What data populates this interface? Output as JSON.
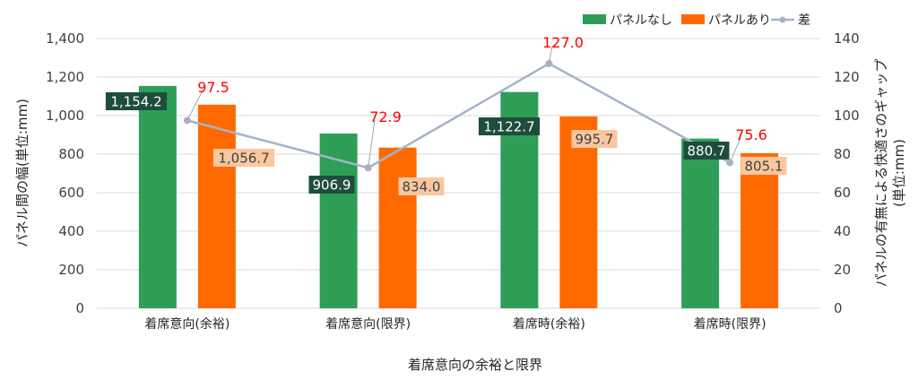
{
  "chart_data": {
    "type": "bar",
    "categories": [
      "着席意向(余裕)",
      "着席意向(限界)",
      "着席時(余裕)",
      "着席時(限界)"
    ],
    "series": [
      {
        "name": "パネルなし",
        "values": [
          1154.2,
          906.9,
          1122.7,
          880.7
        ],
        "color": "#2E9E57",
        "axis": "left",
        "labels": [
          "1,154.2",
          "906.9",
          "1,122.7",
          "880.7"
        ]
      },
      {
        "name": "パネルあり",
        "values": [
          1056.7,
          834.0,
          995.7,
          805.1
        ],
        "color": "#FF6A00",
        "axis": "left",
        "labels": [
          "1,056.7",
          "834.0",
          "995.7",
          "805.1"
        ]
      },
      {
        "name": "差",
        "type": "line",
        "values": [
          97.5,
          72.9,
          127.0,
          75.6
        ],
        "color": "#A5B3C8",
        "axis": "right",
        "labels": [
          "97.5",
          "72.9",
          "127.0",
          "75.6"
        ],
        "label_color": "#FF0000"
      }
    ],
    "xlabel": "着席意向の余裕と限界",
    "ylabel": "パネル間の幅(単位:mm)",
    "y2label_line1": "パネルの有無による快適さのギャップ",
    "y2label_line2": "(単位:mm)",
    "ylim": [
      0,
      1400
    ],
    "y2lim": [
      0,
      140
    ],
    "yticks": [
      "0",
      "200",
      "400",
      "600",
      "800",
      "1,000",
      "1,200",
      "1,400"
    ],
    "y2ticks": [
      "0",
      "20",
      "40",
      "60",
      "80",
      "100",
      "120",
      "140"
    ],
    "legend_position": "top-right",
    "grid": true,
    "green_label_bg": "#1E4D3C",
    "orange_label_bg": "#F9C7A0"
  }
}
